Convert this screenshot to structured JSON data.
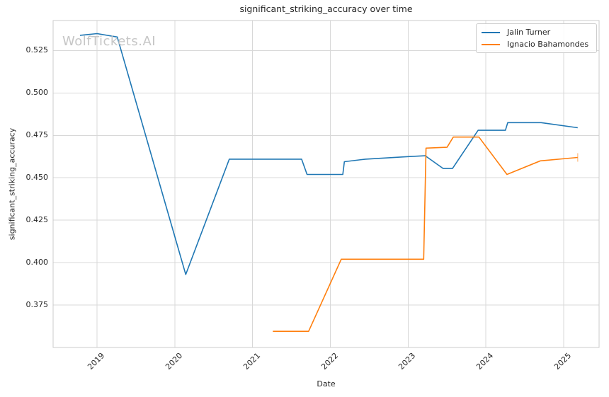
{
  "figure": {
    "watermark": "WolfTickets.AI"
  },
  "chart_data": {
    "type": "line",
    "title": "significant_striking_accuracy over time",
    "xlabel": "Date",
    "ylabel": "significant_striking_accuracy",
    "grid": true,
    "legend_position": "upper right",
    "x_tick_values": [
      2019,
      2020,
      2021,
      2022,
      2023,
      2024,
      2025
    ],
    "x_tick_labels": [
      "2019",
      "2020",
      "2021",
      "2022",
      "2023",
      "2024",
      "2025"
    ],
    "y_tick_values": [
      0.375,
      0.4,
      0.425,
      0.45,
      0.475,
      0.5,
      0.525
    ],
    "y_tick_labels": [
      "0.375",
      "0.400",
      "0.425",
      "0.450",
      "0.475",
      "0.500",
      "0.525"
    ],
    "xlim": [
      2018.435,
      2025.455
    ],
    "ylim": [
      0.35,
      0.5427
    ],
    "colors": {
      "grid": "#d8d8d8",
      "spine": "#cbcbcb",
      "text": "#262626",
      "watermark": "#c6c6c6"
    },
    "series": [
      {
        "name": "Jalin Turner",
        "color": "#1f77b4",
        "points": [
          [
            2018.78,
            0.534
          ],
          [
            2019.0,
            0.535
          ],
          [
            2019.26,
            0.533
          ],
          [
            2020.14,
            0.393
          ],
          [
            2020.7,
            0.461
          ],
          [
            2021.63,
            0.461
          ],
          [
            2021.7,
            0.452
          ],
          [
            2022.16,
            0.452
          ],
          [
            2022.18,
            0.4595
          ],
          [
            2022.45,
            0.461
          ],
          [
            2023.0,
            0.4625
          ],
          [
            2023.22,
            0.463
          ],
          [
            2023.45,
            0.4555
          ],
          [
            2023.57,
            0.4555
          ],
          [
            2023.9,
            0.478
          ],
          [
            2024.25,
            0.478
          ],
          [
            2024.28,
            0.4825
          ],
          [
            2024.71,
            0.4825
          ],
          [
            2025.18,
            0.4795
          ]
        ]
      },
      {
        "name": "Ignacio Bahamondes",
        "color": "#ff7f0e",
        "end_cap": true,
        "points": [
          [
            2021.26,
            0.3595
          ],
          [
            2021.72,
            0.3595
          ],
          [
            2022.14,
            0.402
          ],
          [
            2023.2,
            0.402
          ],
          [
            2023.23,
            0.4675
          ],
          [
            2023.5,
            0.468
          ],
          [
            2023.58,
            0.474
          ],
          [
            2023.91,
            0.474
          ],
          [
            2024.27,
            0.452
          ],
          [
            2024.7,
            0.46
          ],
          [
            2025.18,
            0.462
          ]
        ]
      }
    ]
  }
}
